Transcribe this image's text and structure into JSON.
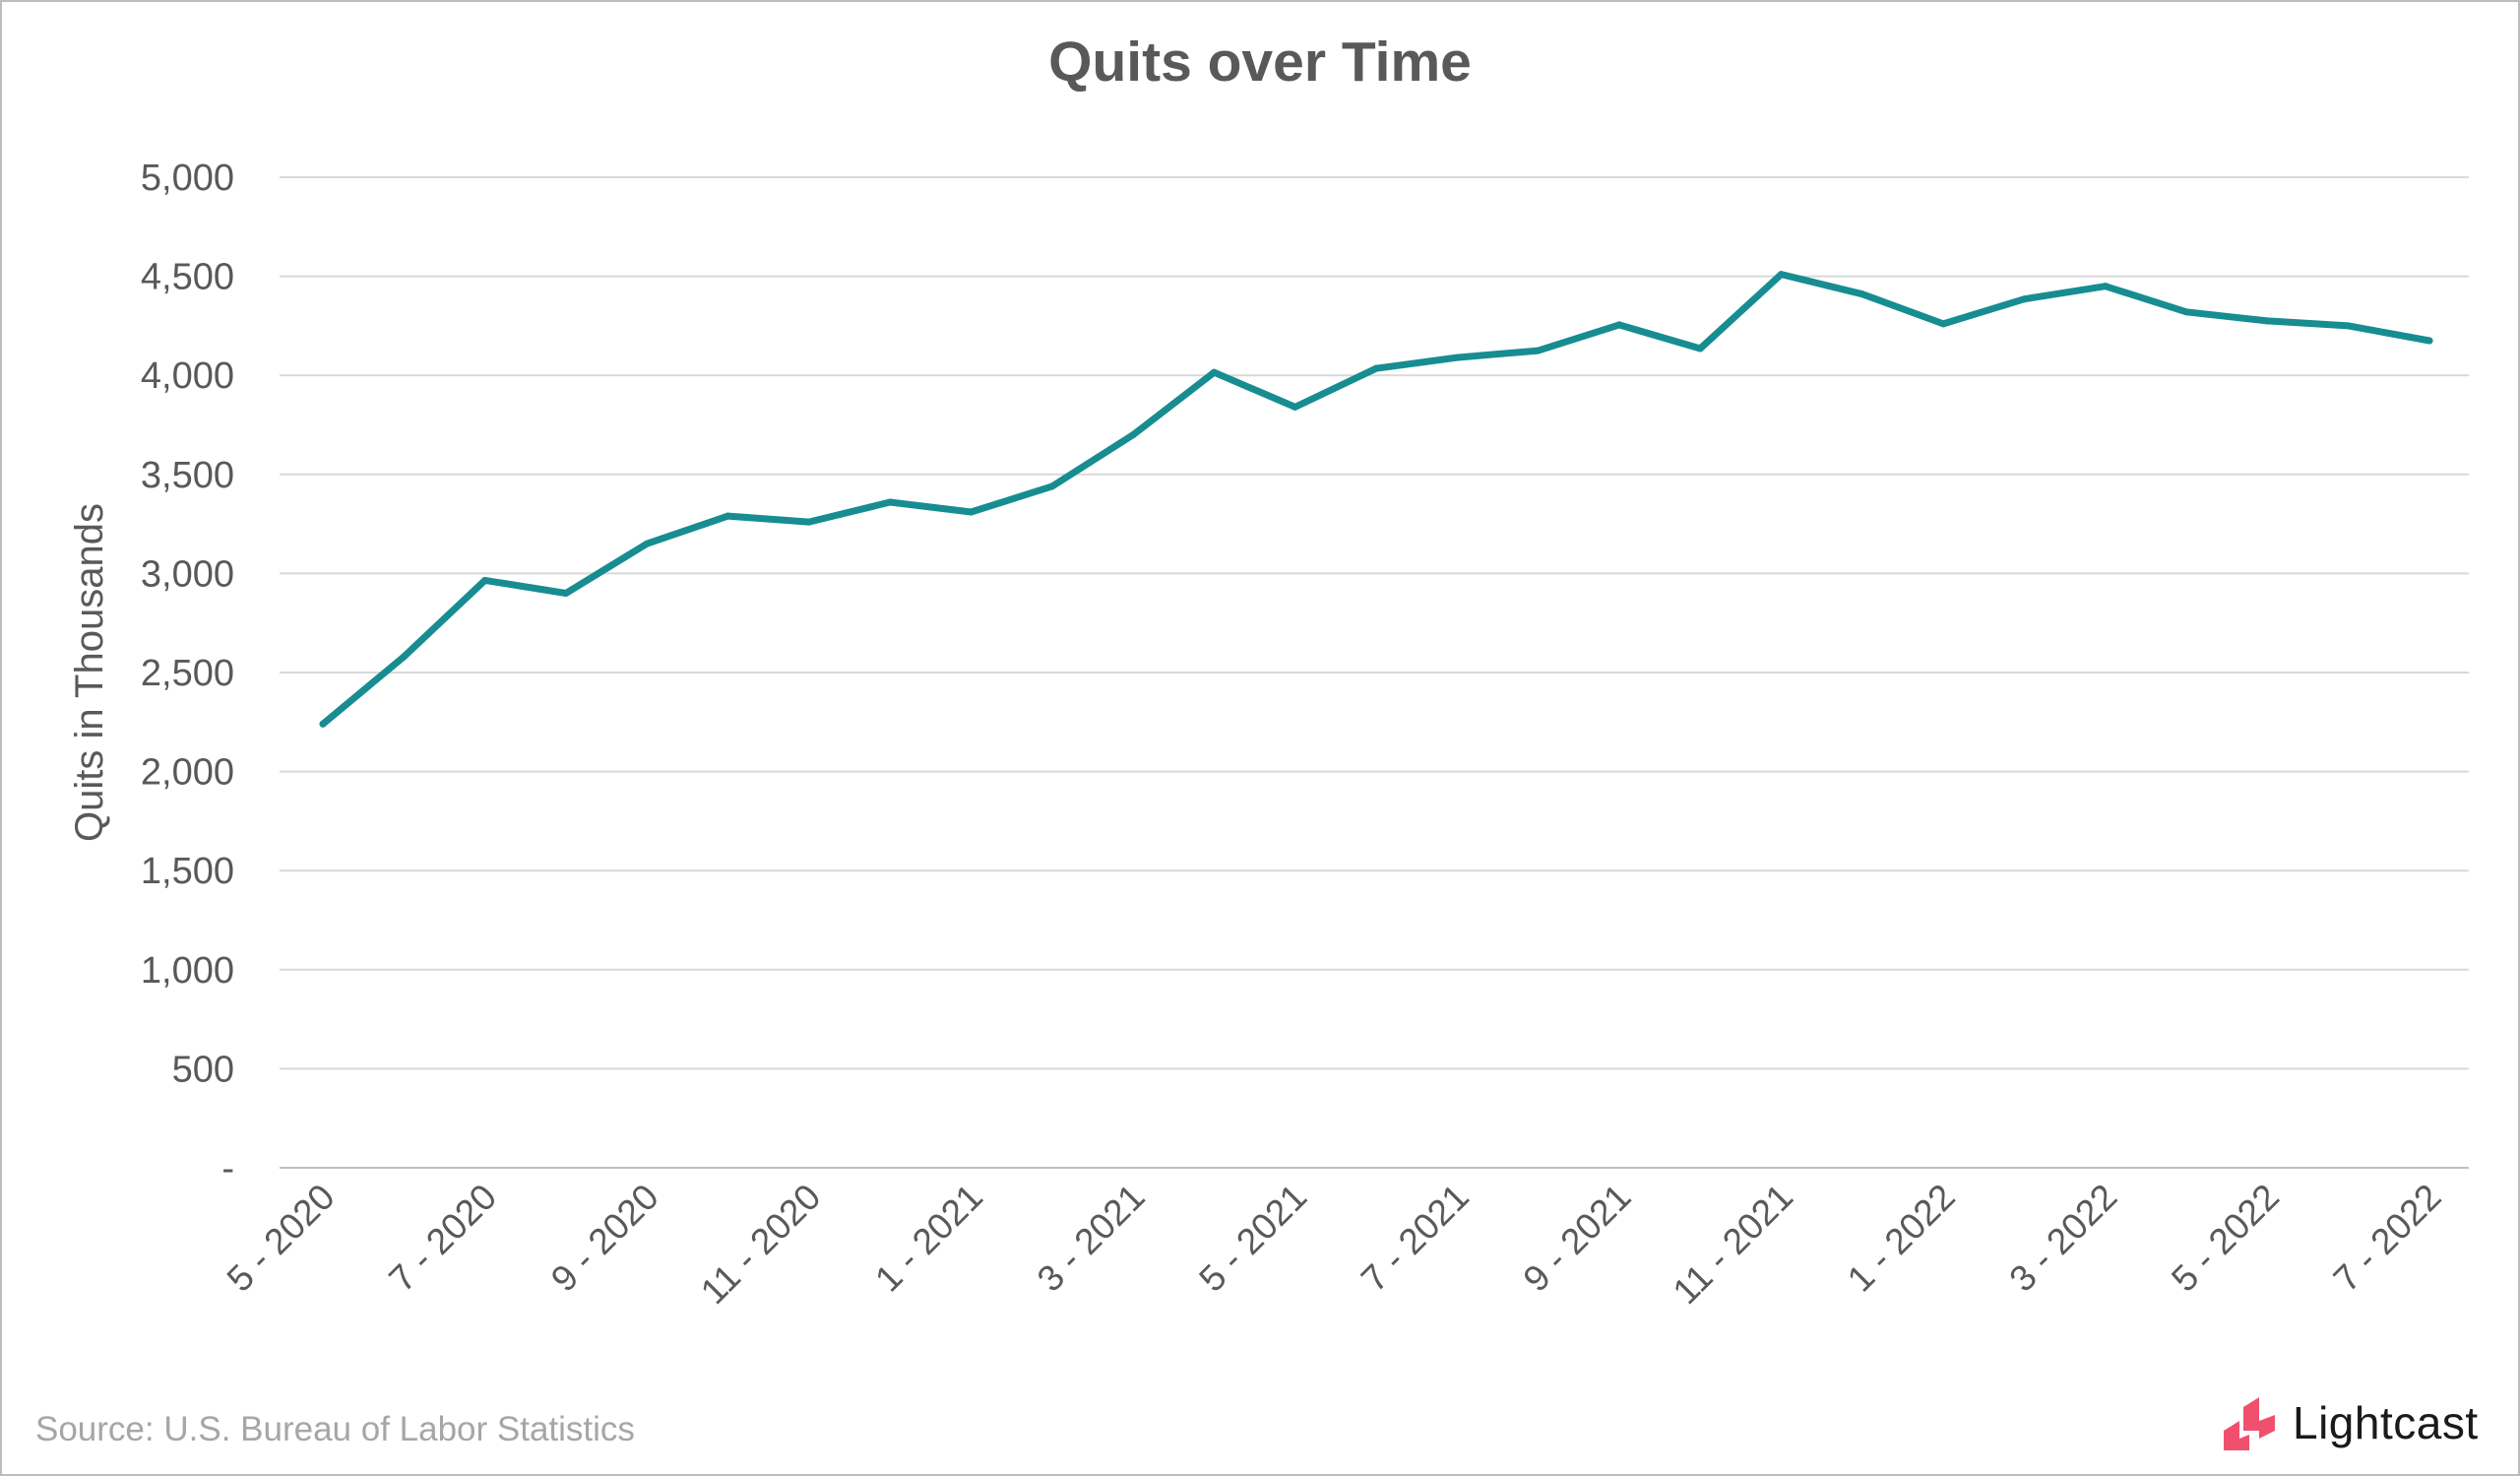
{
  "chart_data": {
    "type": "line",
    "title": "Quits over Time",
    "ylabel": "Quits in Thousands",
    "xlabel": "",
    "ylim": [
      0,
      5000
    ],
    "yticks": [
      "-",
      "500",
      "1,000",
      "1,500",
      "2,000",
      "2,500",
      "3,000",
      "3,500",
      "4,000",
      "4,500",
      "5,000"
    ],
    "ytick_values": [
      0,
      500,
      1000,
      1500,
      2000,
      2500,
      3000,
      3500,
      4000,
      4500,
      5000
    ],
    "categories": [
      "5 - 2020",
      "6 - 2020",
      "7 - 2020",
      "8 - 2020",
      "9 - 2020",
      "10 - 2020",
      "11 - 2020",
      "12 - 2020",
      "1 - 2021",
      "2 - 2021",
      "3 - 2021",
      "4 - 2021",
      "5 - 2021",
      "6 - 2021",
      "7 - 2021",
      "8 - 2021",
      "9 - 2021",
      "10 - 2021",
      "11 - 2021",
      "12 - 2021",
      "1 - 2022",
      "2 - 2022",
      "3 - 2022",
      "4 - 2022",
      "5 - 2022",
      "6 - 2022",
      "7 - 2022"
    ],
    "xtick_labels": [
      "5 - 2020",
      "",
      "7 - 2020",
      "",
      "9 - 2020",
      "",
      "11 - 2020",
      "",
      "1 - 2021",
      "",
      "3 - 2021",
      "",
      "5 - 2021",
      "",
      "7 - 2021",
      "",
      "9 - 2021",
      "",
      "11 - 2021",
      "",
      "1 - 2022",
      "",
      "3 - 2022",
      "",
      "5 - 2022",
      "",
      "7 - 2022"
    ],
    "series": [
      {
        "values": [
          2240,
          2580,
          2965,
          2900,
          3150,
          3290,
          3260,
          3360,
          3310,
          3440,
          3700,
          4015,
          3840,
          4035,
          4090,
          4125,
          4255,
          4135,
          4510,
          4410,
          4260,
          4385,
          4450,
          4320,
          4275,
          4250,
          4175
        ],
        "color": "#178d91"
      }
    ],
    "grid": true,
    "legend": "none"
  },
  "footer": {
    "source": "Source:  U.S. Bureau of Labor Statistics",
    "logo_text": "Lightcast",
    "logo_color": "#f0506e"
  },
  "colors": {
    "line": "#178d91",
    "grid": "#d9d9d9",
    "axis_text": "#595959"
  }
}
